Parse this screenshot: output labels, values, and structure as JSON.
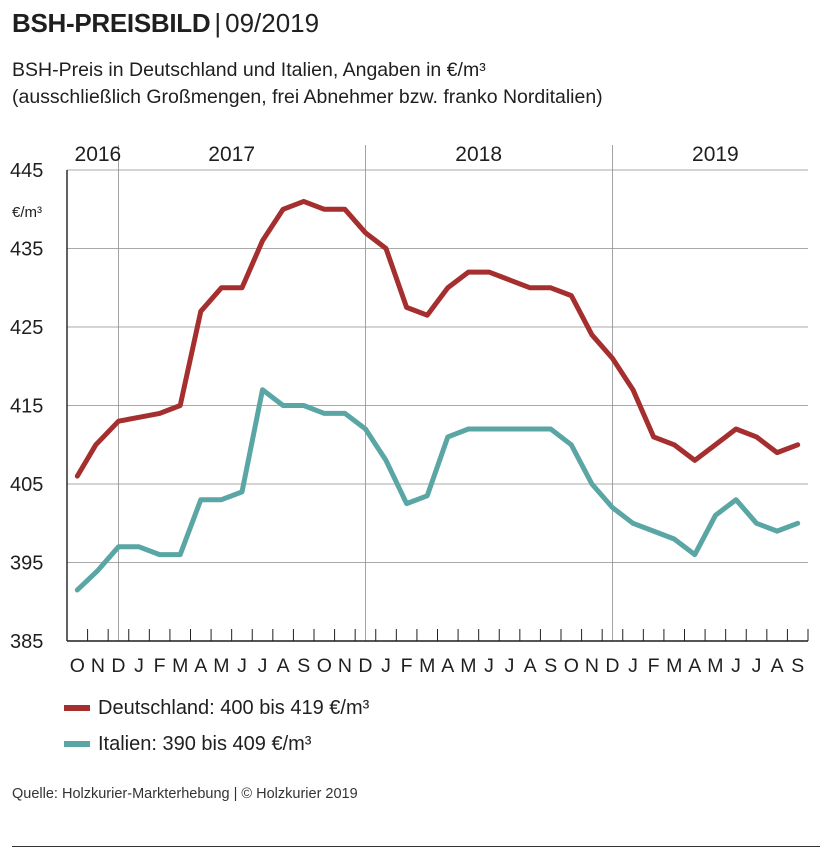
{
  "header": {
    "title": "BSH-PREISBILD",
    "separator": "|",
    "date": "09/2019",
    "subtitle_line1": "BSH-Preis in Deutschland und Italien, Angaben in €/m³",
    "subtitle_line2": "(ausschließlich Großmengen, frei Abnehmer bzw. franko Norditalien)"
  },
  "legend": {
    "items": [
      {
        "label": "Deutschland: 400 bis 419 €/m³",
        "color": "#a52f2f"
      },
      {
        "label": "Italien: 390 bis 409 €/m³",
        "color": "#5aa6a4"
      }
    ]
  },
  "footer": {
    "source": "Quelle: Holzkurier-Markterhebung | © Holzkurier 2019"
  },
  "chart_data": {
    "type": "line",
    "ylabel": "€/m³",
    "ylim": [
      385,
      445
    ],
    "yticks": [
      385,
      395,
      405,
      415,
      425,
      435,
      445
    ],
    "grid": true,
    "legend_position": "bottom-left",
    "year_labels": [
      {
        "label": "2016",
        "index": 1
      },
      {
        "label": "2017",
        "index": 7.5
      },
      {
        "label": "2018",
        "index": 19.5
      },
      {
        "label": "2019",
        "index": 31
      }
    ],
    "year_boundaries": [
      2.5,
      14.5,
      26.5
    ],
    "months": [
      "O",
      "N",
      "D",
      "J",
      "F",
      "M",
      "A",
      "M",
      "J",
      "J",
      "A",
      "S",
      "O",
      "N",
      "D",
      "J",
      "F",
      "M",
      "A",
      "M",
      "J",
      "J",
      "A",
      "S",
      "O",
      "N",
      "D",
      "J",
      "F",
      "M",
      "A",
      "M",
      "J",
      "J",
      "A",
      "S"
    ],
    "series": [
      {
        "name": "Deutschland",
        "color": "#a52f2f",
        "points": [
          [
            0,
            406
          ],
          [
            0.9,
            410
          ],
          [
            2,
            413
          ],
          [
            3,
            413.5
          ],
          [
            4,
            414
          ],
          [
            5,
            415
          ],
          [
            6,
            427
          ],
          [
            7,
            430
          ],
          [
            8,
            430
          ],
          [
            9,
            436
          ],
          [
            10,
            440
          ],
          [
            11,
            441
          ],
          [
            12,
            440
          ],
          [
            13,
            440
          ],
          [
            14,
            437
          ],
          [
            15,
            435
          ],
          [
            16,
            427.5
          ],
          [
            17,
            426.5
          ],
          [
            18,
            430
          ],
          [
            19,
            432
          ],
          [
            20,
            432
          ],
          [
            21,
            431
          ],
          [
            22,
            430
          ],
          [
            23,
            430
          ],
          [
            24,
            429
          ],
          [
            25,
            424
          ],
          [
            26,
            421
          ],
          [
            27,
            417
          ],
          [
            28,
            411
          ],
          [
            29,
            410
          ],
          [
            30,
            408
          ],
          [
            31,
            410
          ],
          [
            32,
            412
          ],
          [
            33,
            411
          ],
          [
            34,
            409
          ],
          [
            35,
            410
          ]
        ]
      },
      {
        "name": "Italien",
        "color": "#5aa6a4",
        "points": [
          [
            0,
            391.5
          ],
          [
            1,
            394
          ],
          [
            2,
            397
          ],
          [
            3,
            397
          ],
          [
            4,
            396
          ],
          [
            5,
            396
          ],
          [
            6,
            403
          ],
          [
            7,
            403
          ],
          [
            8,
            404
          ],
          [
            9,
            417
          ],
          [
            10,
            415
          ],
          [
            11,
            415
          ],
          [
            12,
            414
          ],
          [
            13,
            414
          ],
          [
            14,
            412
          ],
          [
            15,
            408
          ],
          [
            16,
            402.5
          ],
          [
            17,
            403.5
          ],
          [
            18,
            411
          ],
          [
            19,
            412
          ],
          [
            20,
            412
          ],
          [
            21,
            412
          ],
          [
            22,
            412
          ],
          [
            23,
            412
          ],
          [
            24,
            410
          ],
          [
            25,
            405
          ],
          [
            26,
            402
          ],
          [
            27,
            400
          ],
          [
            28,
            399
          ],
          [
            29,
            398
          ],
          [
            30,
            396
          ],
          [
            31,
            401
          ],
          [
            32,
            403
          ],
          [
            33,
            400
          ],
          [
            34,
            399
          ],
          [
            35,
            400
          ]
        ]
      }
    ]
  }
}
